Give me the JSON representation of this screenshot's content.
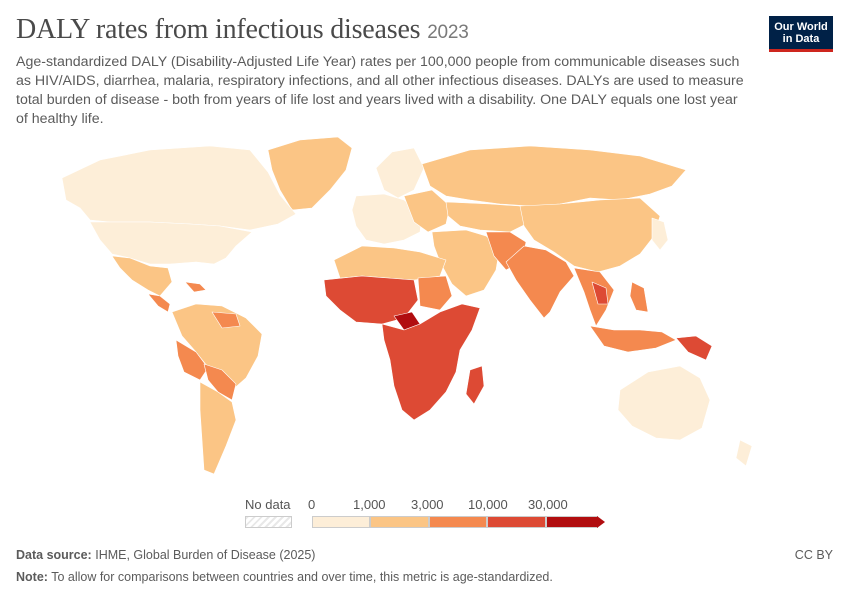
{
  "header": {
    "title": "DALY rates from infectious diseases",
    "year": "2023",
    "subtitle": "Age-standardized DALY (Disability-Adjusted Life Year) rates per 100,000 people from communicable diseases such as HIV/AIDS, diarrhea, malaria, respiratory infections, and all other infectious diseases. DALYs are used to measure total burden of disease - both from years of life lost and years lived with a disability. One DALY equals one lost year of healthy life."
  },
  "logo": {
    "line1": "Our World",
    "line2": "in Data"
  },
  "colors": {
    "bin1": "#fdeed8",
    "bin2": "#fbc585",
    "bin3": "#f4894f",
    "bin4": "#dd4a34",
    "bin5": "#b10d0f",
    "no_data": "#e8e8e8",
    "border": "#ffffff",
    "title": "#4a4a4a",
    "logo_bg": "#002147",
    "logo_accent": "#ce261e"
  },
  "legend": {
    "no_data_label": "No data",
    "tick_labels": [
      "0",
      "1,000",
      "3,000",
      "10,000",
      "30,000"
    ]
  },
  "footer": {
    "source_label": "Data source:",
    "source_text": "IHME, Global Burden of Disease (2025)",
    "note_label": "Note:",
    "note_text": "To allow for comparisons between countries and over time, this metric is age-standardized.",
    "license": "CC BY"
  }
}
